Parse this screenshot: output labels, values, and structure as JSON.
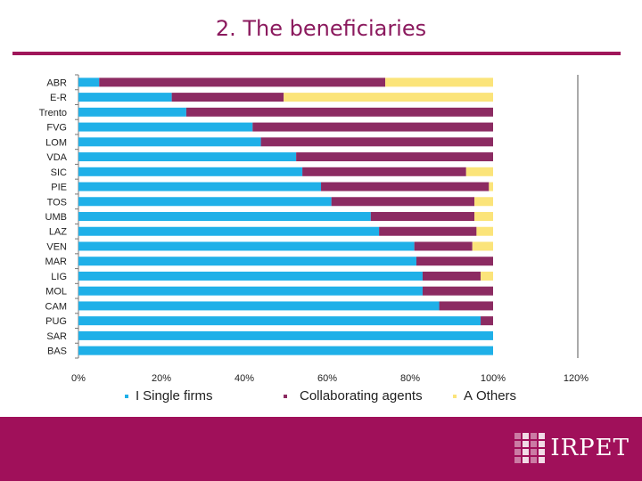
{
  "slide": {
    "title": "2. The beneficiaries"
  },
  "chart_data": {
    "type": "bar",
    "orientation": "horizontal",
    "stacked": true,
    "categories": [
      "ABR",
      "E-R",
      "Trento",
      "FVG",
      "LOM",
      "VDA",
      "SIC",
      "PIE",
      "TOS",
      "UMB",
      "LAZ",
      "VEN",
      "MAR",
      "LIG",
      "MOL",
      "CAM",
      "PUG",
      "SAR",
      "BAS"
    ],
    "series": [
      {
        "name": "Single firms",
        "color": "#1fb0e8",
        "values": [
          5,
          22.5,
          26,
          42,
          44,
          52.5,
          54,
          58.5,
          61,
          70.5,
          72.5,
          81,
          81.5,
          83,
          83,
          87,
          97,
          100,
          100
        ]
      },
      {
        "name": "Collaborating agents",
        "color": "#8c2b62",
        "values": [
          69,
          27,
          74,
          58,
          56,
          47.5,
          39.5,
          40.5,
          34.5,
          25,
          23.5,
          14,
          18.5,
          14,
          17,
          13,
          3,
          0,
          0
        ]
      },
      {
        "name": "Others",
        "color": "#fbe47a",
        "values": [
          26,
          50.5,
          0,
          0,
          0,
          0,
          6.5,
          1,
          4.5,
          4.5,
          4,
          5,
          0,
          3,
          0,
          0,
          0,
          0,
          0
        ]
      }
    ],
    "xticks": [
      "0%",
      "20%",
      "40%",
      "60%",
      "80%",
      "100%",
      "120%"
    ],
    "xlim": [
      0,
      120
    ],
    "title": "",
    "xlabel": "",
    "ylabel": "",
    "grid": false
  },
  "legend": {
    "single_prefix": "I",
    "single_label": "Single firms",
    "collab_label": "Collaborating agents",
    "others_prefix": "A",
    "others_label": "Others"
  },
  "footer": {
    "logo_text": "IRPET"
  }
}
